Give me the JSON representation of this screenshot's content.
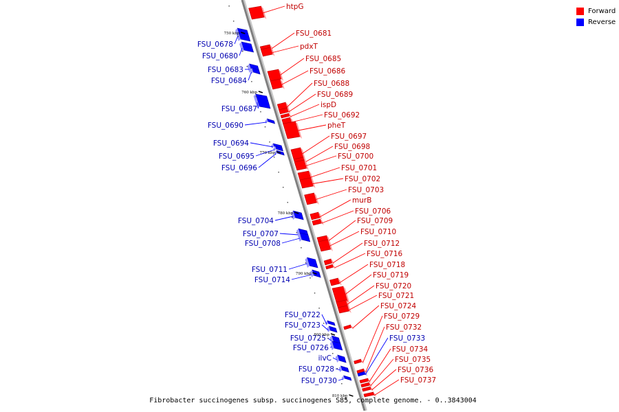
{
  "legend": {
    "forward_label": "Forward",
    "reverse_label": "Reverse",
    "forward_color": "#ff0000",
    "reverse_color": "#0000ff"
  },
  "caption": "Fibrobacter succinogenes subsp. succinogenes S85, complete genome. - 0..3843004",
  "scale_ticks": [
    "750 kbp",
    "760 kbp",
    "770 kbp",
    "780 kbp",
    "790 kbp",
    "800 kbp",
    "810 kbp"
  ],
  "forward_genes": [
    "htpG",
    "FSU_0681",
    "pdxT",
    "FSU_0685",
    "FSU_0686",
    "FSU_0688",
    "FSU_0689",
    "ispD",
    "FSU_0692",
    "pheT",
    "FSU_0697",
    "FSU_0698",
    "FSU_0700",
    "FSU_0701",
    "FSU_0702",
    "FSU_0703",
    "murB",
    "FSU_0706",
    "FSU_0709",
    "FSU_0710",
    "FSU_0712",
    "FSU_0716",
    "FSU_0718",
    "FSU_0719",
    "FSU_0720",
    "FSU_0721",
    "FSU_0724",
    "FSU_0729",
    "FSU_0732",
    "FSU_0734",
    "FSU_0735",
    "FSU_0736",
    "FSU_0737"
  ],
  "reverse_genes": [
    "FSU_0678",
    "FSU_0680",
    "FSU_0683",
    "FSU_0684",
    "FSU_0687",
    "FSU_0690",
    "FSU_0694",
    "FSU_0695",
    "FSU_0696",
    "FSU_0704",
    "FSU_0707",
    "FSU_0708",
    "FSU_0711",
    "FSU_0714",
    "FSU_0722",
    "FSU_0723",
    "FSU_0725",
    "FSU_0726",
    "ilvC",
    "FSU_0728",
    "FSU_0730",
    "FSU_0733"
  ]
}
